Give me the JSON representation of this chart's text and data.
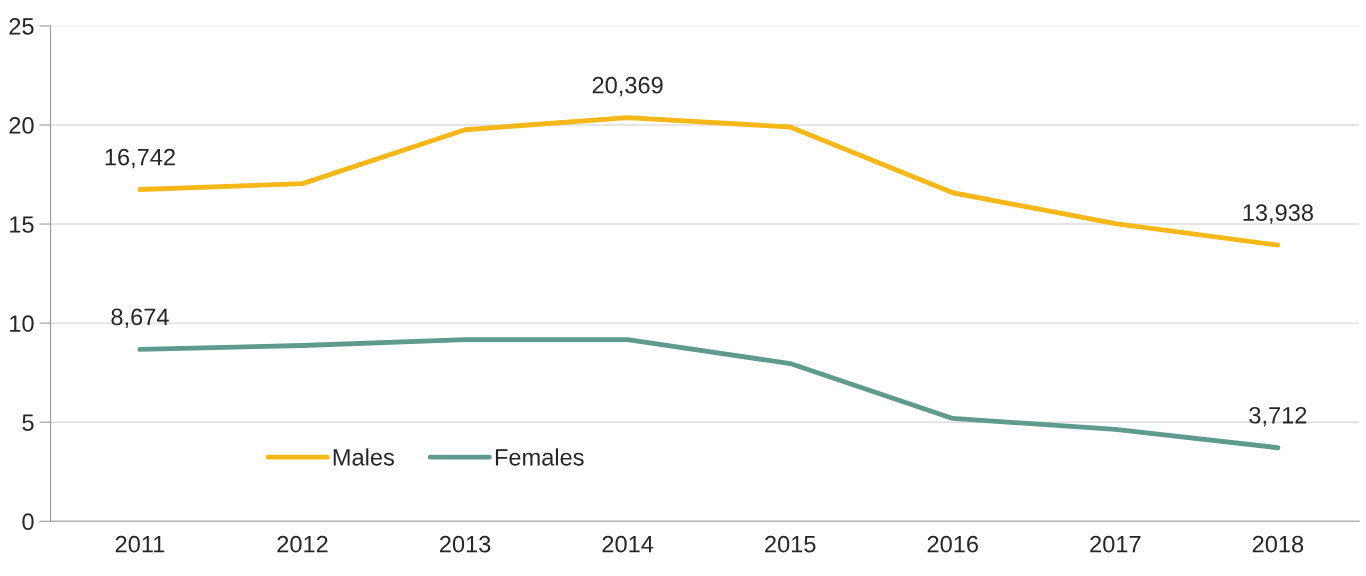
{
  "chart_data": {
    "type": "line",
    "categories": [
      "2011",
      "2012",
      "2013",
      "2014",
      "2015",
      "2016",
      "2017",
      "2018"
    ],
    "series": [
      {
        "name": "Males",
        "color": "#f5b818",
        "values": [
          16.742,
          17.04,
          19.76,
          20.369,
          19.9,
          16.58,
          15.02,
          13.938
        ]
      },
      {
        "name": "Females",
        "color": "#5f9a8e",
        "values": [
          8.674,
          8.87,
          9.17,
          9.17,
          7.96,
          5.19,
          4.64,
          3.712
        ]
      }
    ],
    "annotations": [
      {
        "text": "16,742",
        "x": "2011",
        "y": 16.742
      },
      {
        "text": "20,369",
        "x": "2014",
        "y": 20.369
      },
      {
        "text": "13,938",
        "x": "2018",
        "y": 13.938
      },
      {
        "text": "8,674",
        "x": "2011",
        "y": 8.674
      },
      {
        "text": "3,712",
        "x": "2018",
        "y": 3.712
      }
    ],
    "ylim": [
      0,
      25
    ],
    "yticks": [
      0,
      5,
      10,
      15,
      20,
      25
    ],
    "grid": "y",
    "legend": "bottom left",
    "marker": "none",
    "line_style": "solid"
  }
}
